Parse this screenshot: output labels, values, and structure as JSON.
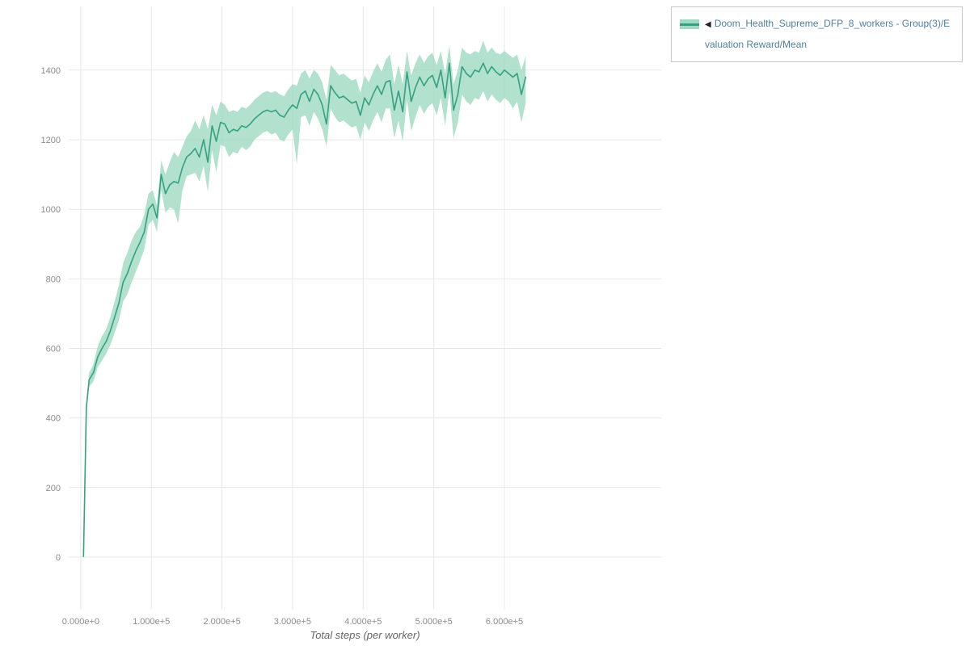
{
  "page": {
    "background": "#ffffff"
  },
  "legend": {
    "items": [
      {
        "collapse_icon": "◀",
        "label": "Doom_Health_Supreme_DFP_8_workers - Group(3)/Evaluation Reward/Mean",
        "label_color": "#4f7f9f",
        "marker_color": "#34a183",
        "band_color": "#9fdac2"
      }
    ]
  },
  "chart_data": {
    "type": "line",
    "title": "",
    "xlabel": "Total steps (per worker)",
    "ylabel": "",
    "legend_position": "outside-top-right",
    "grid": true,
    "grid_color": "#e7e7e7",
    "xlim": [
      -17000,
      822000
    ],
    "ylim": [
      -151,
      1583
    ],
    "x_ticks": {
      "values": [
        0,
        100000,
        200000,
        300000,
        400000,
        500000,
        600000
      ],
      "labels": [
        "0.000e+0",
        "1.000e+5",
        "2.000e+5",
        "3.000e+5",
        "4.000e+5",
        "5.000e+5",
        "6.000e+5"
      ]
    },
    "y_ticks": [
      0,
      200,
      400,
      600,
      800,
      1000,
      1200,
      1400
    ],
    "series": [
      {
        "name": "Doom_Health_Supreme_DFP_8_workers - Group(3)/Evaluation Reward/Mean",
        "color": "#34a183",
        "band_color": "#9fdac2",
        "band_opacity": 0.8,
        "x": [
          4000,
          8000,
          12000,
          18000,
          24000,
          30000,
          36000,
          42000,
          48000,
          54000,
          60000,
          66000,
          72000,
          78000,
          84000,
          90000,
          96000,
          102000,
          108000,
          114000,
          120000,
          126000,
          132000,
          138000,
          144000,
          150000,
          156000,
          162000,
          168000,
          174000,
          180000,
          186000,
          192000,
          198000,
          204000,
          210000,
          216000,
          222000,
          228000,
          234000,
          240000,
          246000,
          252000,
          258000,
          264000,
          270000,
          276000,
          282000,
          288000,
          294000,
          300000,
          306000,
          312000,
          318000,
          324000,
          330000,
          336000,
          342000,
          348000,
          354000,
          360000,
          366000,
          372000,
          378000,
          384000,
          390000,
          396000,
          402000,
          408000,
          414000,
          420000,
          426000,
          432000,
          438000,
          444000,
          450000,
          456000,
          462000,
          468000,
          474000,
          480000,
          486000,
          492000,
          498000,
          504000,
          510000,
          516000,
          522000,
          528000,
          534000,
          540000,
          546000,
          552000,
          558000,
          564000,
          570000,
          576000,
          582000,
          588000,
          594000,
          600000,
          606000,
          612000,
          618000,
          624000,
          630000
        ],
        "mean": [
          2,
          430,
          510,
          530,
          575,
          600,
          620,
          650,
          690,
          730,
          790,
          815,
          850,
          880,
          905,
          935,
          1000,
          1015,
          975,
          1100,
          1045,
          1070,
          1080,
          1075,
          1120,
          1150,
          1160,
          1175,
          1150,
          1200,
          1135,
          1240,
          1195,
          1250,
          1245,
          1220,
          1230,
          1225,
          1240,
          1235,
          1245,
          1260,
          1270,
          1280,
          1285,
          1280,
          1285,
          1270,
          1265,
          1285,
          1300,
          1290,
          1330,
          1340,
          1310,
          1345,
          1330,
          1300,
          1245,
          1355,
          1335,
          1320,
          1325,
          1315,
          1305,
          1310,
          1270,
          1320,
          1300,
          1330,
          1355,
          1330,
          1365,
          1370,
          1285,
          1340,
          1280,
          1395,
          1310,
          1350,
          1380,
          1355,
          1375,
          1385,
          1350,
          1400,
          1320,
          1420,
          1285,
          1330,
          1410,
          1390,
          1380,
          1400,
          1395,
          1420,
          1390,
          1410,
          1395,
          1385,
          1400,
          1390,
          1380,
          1390,
          1330,
          1380
        ],
        "low": [
          0,
          415,
          490,
          505,
          545,
          565,
          585,
          610,
          645,
          680,
          735,
          755,
          790,
          820,
          850,
          885,
          955,
          970,
          935,
          1055,
          990,
          1005,
          1000,
          960,
          1055,
          1095,
          1100,
          1105,
          1080,
          1125,
          1050,
          1170,
          1105,
          1185,
          1180,
          1150,
          1165,
          1160,
          1180,
          1170,
          1180,
          1200,
          1210,
          1220,
          1225,
          1215,
          1220,
          1200,
          1195,
          1215,
          1230,
          1130,
          1265,
          1270,
          1240,
          1280,
          1260,
          1230,
          1180,
          1290,
          1265,
          1250,
          1255,
          1245,
          1235,
          1240,
          1200,
          1250,
          1225,
          1255,
          1280,
          1250,
          1290,
          1290,
          1205,
          1255,
          1195,
          1315,
          1225,
          1265,
          1300,
          1275,
          1295,
          1305,
          1270,
          1320,
          1240,
          1340,
          1205,
          1250,
          1330,
          1310,
          1300,
          1320,
          1315,
          1340,
          1310,
          1330,
          1315,
          1305,
          1320,
          1310,
          1290,
          1310,
          1250,
          1305
        ],
        "high": [
          5,
          445,
          530,
          555,
          605,
          635,
          655,
          690,
          735,
          780,
          845,
          875,
          910,
          935,
          950,
          985,
          1045,
          1055,
          1010,
          1140,
          1100,
          1135,
          1165,
          1150,
          1180,
          1210,
          1225,
          1255,
          1230,
          1270,
          1230,
          1300,
          1270,
          1310,
          1300,
          1280,
          1285,
          1280,
          1295,
          1290,
          1300,
          1315,
          1325,
          1335,
          1340,
          1335,
          1340,
          1330,
          1325,
          1345,
          1360,
          1355,
          1390,
          1400,
          1375,
          1400,
          1390,
          1365,
          1315,
          1415,
          1400,
          1385,
          1390,
          1380,
          1370,
          1375,
          1335,
          1385,
          1365,
          1395,
          1420,
          1395,
          1430,
          1445,
          1360,
          1415,
          1360,
          1455,
          1385,
          1420,
          1445,
          1420,
          1440,
          1450,
          1415,
          1455,
          1390,
          1470,
          1360,
          1400,
          1465,
          1450,
          1445,
          1455,
          1450,
          1485,
          1450,
          1465,
          1450,
          1445,
          1455,
          1445,
          1435,
          1445,
          1400,
          1440
        ]
      }
    ]
  }
}
